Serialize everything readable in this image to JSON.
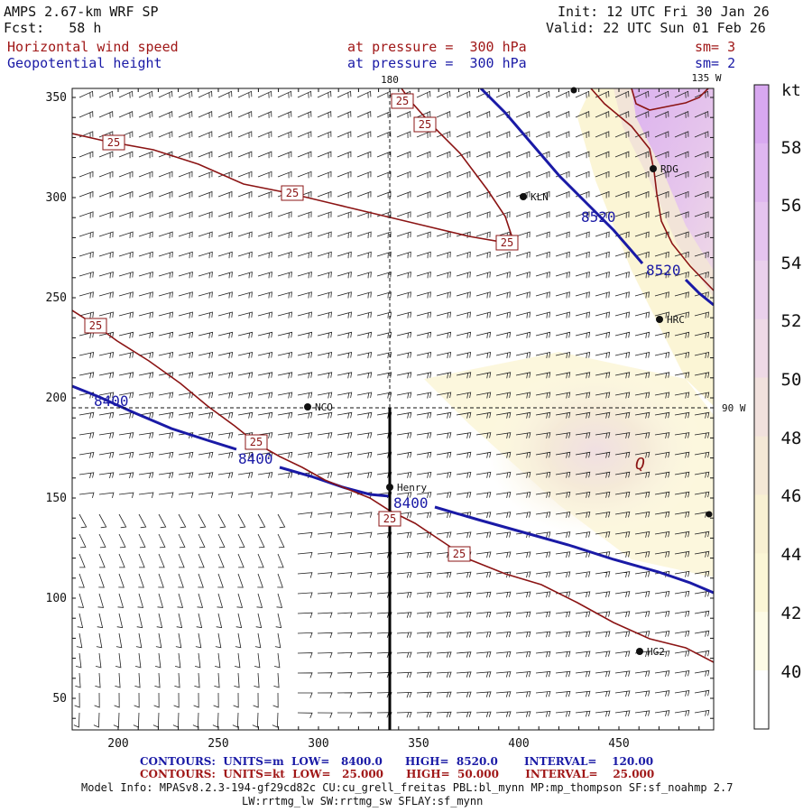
{
  "header": {
    "model_title": "AMPS 2.67-km WRF SP",
    "forecast": "Fcst:   58 h",
    "init": "Init: 12 UTC Fri 30 Jan 26",
    "valid": "Valid: 22 UTC Sun 01 Feb 26",
    "field1": {
      "name": "Horizontal wind speed",
      "level": "at pressure =  300 hPa",
      "smoothing": "sm= 3",
      "color": "#a01818"
    },
    "field2": {
      "name": "Geopotential height",
      "level": "at pressure =  300 hPa",
      "smoothing": "sm= 2",
      "color": "#1a1aa6"
    }
  },
  "map": {
    "x_ticks": [
      "200",
      "250",
      "300",
      "350",
      "400",
      "450"
    ],
    "y_ticks": [
      "350",
      "300",
      "250",
      "200",
      "150",
      "100",
      "50"
    ],
    "lon_labels": [
      "180",
      "135 W",
      "90 W"
    ],
    "stations": [
      {
        "name": "KLN"
      },
      {
        "name": "RDG"
      },
      {
        "name": "HRC"
      },
      {
        "name": "NCO"
      },
      {
        "name": "Henry"
      },
      {
        "name": "HG2"
      }
    ],
    "contour_labels_height": [
      "8400",
      "8400",
      "8400",
      "8520",
      "8520"
    ],
    "contour_labels_speed": [
      "25",
      "25",
      "25",
      "25",
      "25",
      "25",
      "25",
      "25"
    ],
    "marker_label": "Q"
  },
  "colorbar": {
    "unit": "kt",
    "levels": [
      "58",
      "56",
      "54",
      "52",
      "50",
      "48",
      "46",
      "44",
      "42",
      "40"
    ],
    "colors": [
      "#d8a8f0",
      "#dfb6f0",
      "#e5c4ef",
      "#ead0ec",
      "#eed9e6",
      "#f1e1dd",
      "#f4e8d6",
      "#f8f0d2",
      "#fbf6d6",
      "#fdfbe6"
    ]
  },
  "footer": {
    "contours_height": "CONTOURS:  UNITS=m  LOW=   8400.0      HIGH=  8520.0       INTERVAL=    120.00",
    "contours_speed": "CONTOURS:  UNITS=kt  LOW=   25.000      HIGH=  50.000       INTERVAL=    25.000",
    "model_info_1": "Model Info: MPASv8.2.3-194-gf29cd82c CU:cu_grell_freitas PBL:bl_mynn MP:mp_thompson SF:sf_noahmp 2.7",
    "model_info_2": "LW:rrtmg_lw SW:rrtmg_sw SFLAY:sf_mynn"
  }
}
